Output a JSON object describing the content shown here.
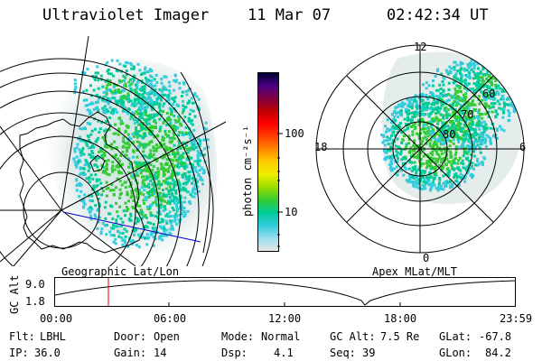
{
  "header": {
    "instrument": "Ultraviolet Imager",
    "date": "11 Mar 07",
    "time": "02:42:34 UT"
  },
  "geo_panel": {
    "label": "Geographic Lat/Lon"
  },
  "apex_panel": {
    "label": "Apex MLat/MLT",
    "mlt_labels": {
      "top": "12",
      "left": "18",
      "right": "6",
      "bottom": "0"
    },
    "lat_labels": [
      "60",
      "70",
      "80"
    ]
  },
  "colorbar": {
    "unit": "photon cm⁻²s⁻¹",
    "ticks": [
      "100",
      "10"
    ],
    "colors": [
      "#000033",
      "#4b0082",
      "#800040",
      "#c00000",
      "#ff0000",
      "#ff4000",
      "#ff8800",
      "#ffcc00",
      "#eeee00",
      "#99dd00",
      "#33cc33",
      "#00cc99",
      "#33ccdd",
      "#99ddee",
      "#e6e6e6"
    ]
  },
  "altitude_strip": {
    "axis_label": "GC Alt",
    "y_ticks": [
      "9.0",
      "1.8"
    ],
    "x_ticks": [
      "00:00",
      "06:00",
      "12:00",
      "18:00",
      "23:59"
    ],
    "marker_color": "#e00000",
    "line_color": "#000000"
  },
  "info": {
    "row1": [
      {
        "label": "Flt:",
        "value": "LBHL"
      },
      {
        "label": "Door:",
        "value": "Open"
      },
      {
        "label": "Mode:",
        "value": "Normal"
      },
      {
        "label": "GC Alt:",
        "value": "7.5 Re"
      },
      {
        "label": "GLat:",
        "value": "-67.8"
      }
    ],
    "row2": [
      {
        "label": "IP:",
        "value": "36.0"
      },
      {
        "label": "Gain:",
        "value": "14"
      },
      {
        "label": "Dsp:",
        "value": "4.1"
      },
      {
        "label": "Seq:",
        "value": "39"
      },
      {
        "label": "GLon:",
        "value": "84.2"
      }
    ]
  },
  "colors": {
    "aurora_low": "#33ccdd",
    "aurora_mid": "#00cc99",
    "aurora_high": "#33cc33",
    "glow": "#dfe8e8",
    "track_line": "#0000cc"
  }
}
